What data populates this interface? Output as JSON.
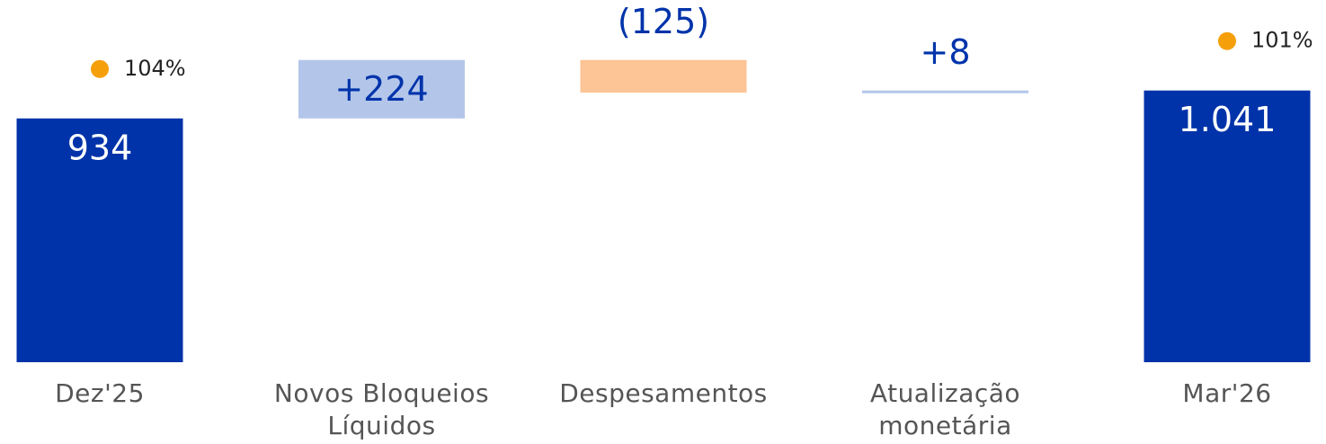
{
  "chart_data": {
    "type": "waterfall",
    "categories": [
      "Dez'25",
      "Novos Bloqueios Líquidos",
      "Despesamentos",
      "Atualização monetária",
      "Mar'26"
    ],
    "values": [
      934,
      224,
      -125,
      8,
      1041
    ],
    "value_labels": [
      "934",
      "+224",
      "(125)",
      "+8",
      "1.041"
    ],
    "kinds": [
      "total",
      "delta",
      "delta",
      "delta",
      "total"
    ],
    "percent_labels": [
      "104%",
      null,
      null,
      null,
      "101%"
    ],
    "colors": {
      "total": "#0033aa",
      "increase": "#b3c6ea",
      "decrease": "#fdc496",
      "marker": "#f5a00a"
    },
    "ylim": [
      0,
      1250
    ]
  }
}
